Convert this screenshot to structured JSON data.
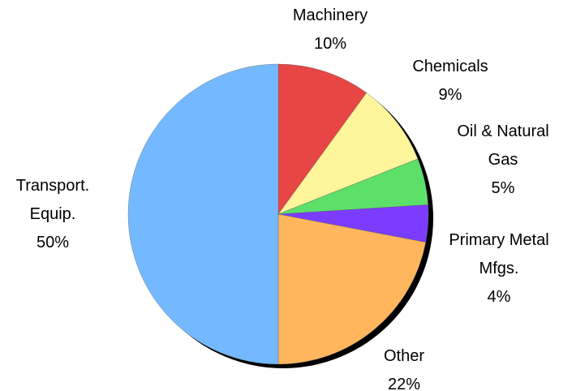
{
  "chart_data": {
    "type": "pie",
    "categories": [
      "Machinery",
      "Chemicals",
      "Oil & Natural Gas",
      "Primary Metal Mfgs.",
      "Other",
      "Transport. Equip."
    ],
    "values": [
      10,
      9,
      5,
      4,
      22,
      50
    ],
    "value_labels": [
      "10%",
      "9%",
      "5%",
      "4%",
      "22%",
      "50%"
    ],
    "colors": [
      "#e84545",
      "#fff59a",
      "#5ce06a",
      "#7b3cff",
      "#ffb65c",
      "#74b9ff"
    ]
  }
}
